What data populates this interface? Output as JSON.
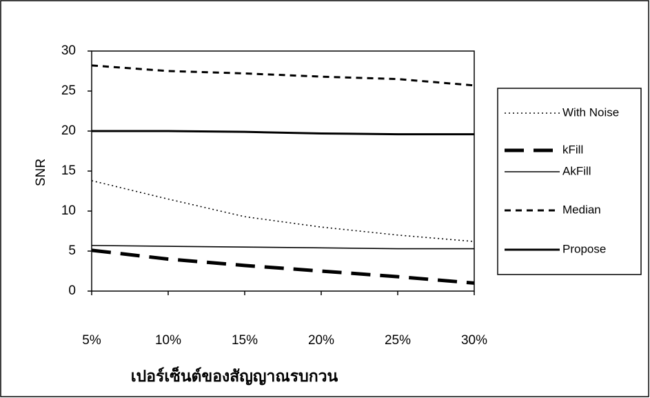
{
  "chart_data": {
    "type": "line",
    "x_label": "เปอร์เซ็นต์ของสัญญาณรบกวน",
    "y_label": "SNR",
    "categories": [
      "5%",
      "10%",
      "15%",
      "20%",
      "25%",
      "30%"
    ],
    "series": [
      {
        "name": "With Noise",
        "color": "#000000",
        "line_style": "dotted",
        "values": [
          13.8,
          11.5,
          9.3,
          8.0,
          7.0,
          6.2
        ]
      },
      {
        "name": "kFill",
        "color": "#000000",
        "line_style": "thick-dashed",
        "values": [
          5.1,
          4.0,
          3.2,
          2.5,
          1.8,
          1.0
        ]
      },
      {
        "name": "AkFill",
        "color": "#000000",
        "line_style": "thin-solid",
        "values": [
          5.7,
          5.6,
          5.5,
          5.4,
          5.3,
          5.3
        ]
      },
      {
        "name": "Median",
        "color": "#000000",
        "line_style": "dashed",
        "values": [
          28.2,
          27.5,
          27.2,
          26.8,
          26.5,
          25.7
        ]
      },
      {
        "name": "Propose",
        "color": "#000000",
        "line_style": "thick-solid",
        "values": [
          20.0,
          20.0,
          19.9,
          19.7,
          19.6,
          19.6
        ]
      }
    ],
    "ylim": [
      0,
      30
    ],
    "yticks": [
      0,
      5,
      10,
      15,
      20,
      25,
      30
    ],
    "legend": "right"
  }
}
